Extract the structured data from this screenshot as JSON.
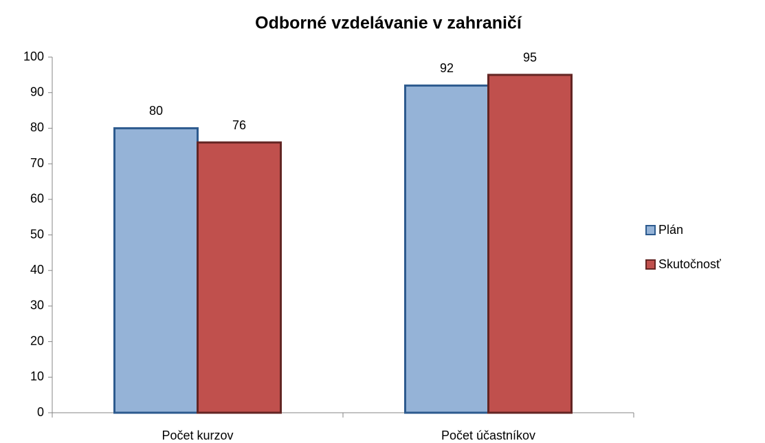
{
  "chart_data": {
    "type": "bar",
    "title": "Odborné vzdelávanie v zahraničí",
    "categories": [
      "Počet kurzov",
      "Počet účastníkov"
    ],
    "series": [
      {
        "name": "Plán",
        "color": "#95b3d7",
        "stroke": "#2c5a8e",
        "values": [
          80,
          92
        ]
      },
      {
        "name": "Skutočnosť",
        "color": "#c0504d",
        "stroke": "#632523",
        "values": [
          76,
          95
        ]
      }
    ],
    "ylim": [
      0,
      100
    ],
    "yticks": [
      0,
      10,
      20,
      30,
      40,
      50,
      60,
      70,
      80,
      90,
      100
    ],
    "grid": false,
    "legend": "right"
  }
}
